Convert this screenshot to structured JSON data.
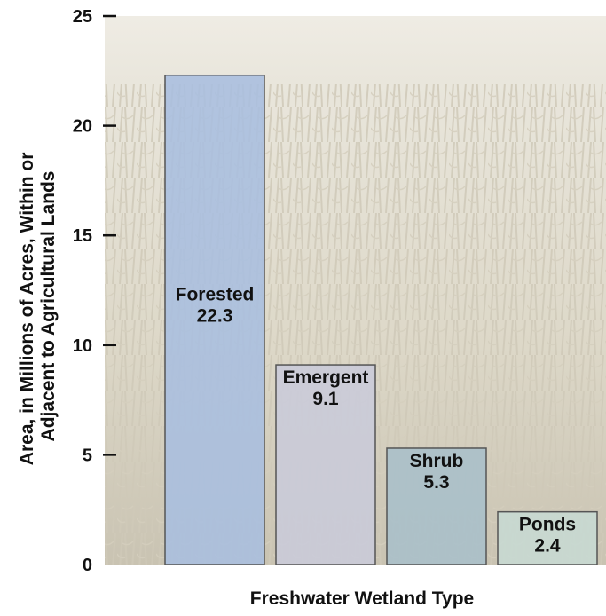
{
  "chart_data": {
    "type": "bar",
    "categories": [
      "Forested",
      "Emergent",
      "Shrub",
      "Ponds"
    ],
    "values": [
      22.3,
      9.1,
      5.3,
      2.4
    ],
    "value_labels": [
      "22.3",
      "9.1",
      "5.3",
      "2.4"
    ],
    "xlabel": "Freshwater Wetland Type",
    "ylabel_lines": [
      "Area, in Millions of Acres, Within or",
      "Adjacent to Agricultural Lands"
    ],
    "ylim": [
      0,
      25
    ],
    "yticks": [
      "0",
      "5",
      "10",
      "15",
      "20",
      "25"
    ],
    "grid": false,
    "colors": {
      "bars": [
        "#a9bedf",
        "#c9cbd9",
        "#a8bfc9",
        "#c7d9d3"
      ],
      "bar_stroke": "#555555",
      "background_photo": "#e6e1d2"
    }
  }
}
